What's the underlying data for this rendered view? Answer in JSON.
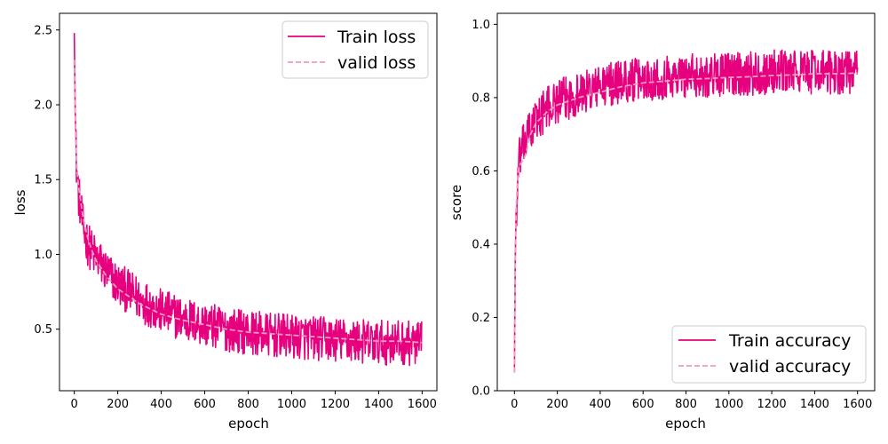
{
  "colors": {
    "train": "#e6007e",
    "valid": "#f29ac0"
  },
  "chart_data": [
    {
      "type": "line",
      "xlabel": "epoch",
      "ylabel": "loss",
      "xlim": [
        -68,
        1668
      ],
      "ylim": [
        0.0887,
        2.6113
      ],
      "xticks": [
        0,
        200,
        400,
        600,
        800,
        1000,
        1200,
        1400,
        1600
      ],
      "yticks": [
        0.5,
        1.0,
        1.5,
        2.0,
        2.5
      ],
      "ytick_labels": [
        "0.5",
        "1.0",
        "1.5",
        "2.0",
        "2.5"
      ],
      "legend_position": "top-right",
      "grid": false,
      "series": [
        {
          "name": "Train loss",
          "style": "solid",
          "x": [
            0,
            5,
            10,
            20,
            30,
            40,
            60,
            80,
            100,
            150,
            200,
            300,
            400,
            500,
            600,
            700,
            800,
            900,
            1000,
            1100,
            1200,
            1300,
            1400,
            1500,
            1600
          ],
          "y": [
            2.48,
            1.85,
            1.6,
            1.4,
            1.3,
            1.18,
            1.08,
            1.02,
            0.98,
            0.88,
            0.8,
            0.7,
            0.62,
            0.57,
            0.53,
            0.5,
            0.48,
            0.46,
            0.45,
            0.44,
            0.43,
            0.42,
            0.41,
            0.41,
            0.4
          ],
          "noise_amplitude": 0.15,
          "y_range_observed": [
            0.15,
            2.5
          ]
        },
        {
          "name": "valid loss",
          "style": "dashed",
          "x": [
            0,
            5,
            10,
            20,
            30,
            40,
            60,
            80,
            100,
            150,
            200,
            300,
            400,
            500,
            600,
            700,
            800,
            900,
            1000,
            1100,
            1200,
            1300,
            1400,
            1500,
            1600
          ],
          "y": [
            2.3,
            1.85,
            1.6,
            1.45,
            1.35,
            1.25,
            1.12,
            1.03,
            0.96,
            0.85,
            0.77,
            0.67,
            0.6,
            0.56,
            0.53,
            0.5,
            0.48,
            0.47,
            0.46,
            0.45,
            0.44,
            0.43,
            0.42,
            0.42,
            0.41
          ]
        }
      ]
    },
    {
      "type": "line",
      "xlabel": "epoch",
      "ylabel": "score",
      "xlim": [
        -80,
        1680
      ],
      "ylim": [
        0.0,
        1.03
      ],
      "xticks": [
        0,
        200,
        400,
        600,
        800,
        1000,
        1200,
        1400,
        1600
      ],
      "yticks": [
        0.0,
        0.2,
        0.4,
        0.6,
        0.8,
        1.0
      ],
      "ytick_labels": [
        "0.0",
        "0.2",
        "0.4",
        "0.6",
        "0.8",
        "1.0"
      ],
      "legend_position": "bottom-right",
      "grid": false,
      "series": [
        {
          "name": "Train accuracy",
          "style": "solid",
          "x": [
            0,
            3,
            5,
            10,
            15,
            20,
            30,
            50,
            75,
            100,
            150,
            200,
            300,
            400,
            500,
            600,
            700,
            800,
            900,
            1000,
            1100,
            1200,
            1300,
            1400,
            1500,
            1600
          ],
          "y": [
            0.05,
            0.3,
            0.42,
            0.5,
            0.55,
            0.62,
            0.65,
            0.68,
            0.71,
            0.74,
            0.77,
            0.79,
            0.81,
            0.83,
            0.845,
            0.85,
            0.855,
            0.86,
            0.86,
            0.865,
            0.865,
            0.87,
            0.87,
            0.87,
            0.87,
            0.87
          ],
          "noise_amplitude": 0.06,
          "y_range_observed": [
            0.05,
            0.98
          ]
        },
        {
          "name": "valid accuracy",
          "style": "dashed",
          "x": [
            0,
            3,
            5,
            10,
            15,
            20,
            30,
            50,
            75,
            100,
            150,
            200,
            300,
            400,
            500,
            600,
            700,
            800,
            900,
            1000,
            1100,
            1200,
            1300,
            1400,
            1500,
            1600
          ],
          "y": [
            0.05,
            0.33,
            0.44,
            0.52,
            0.58,
            0.61,
            0.62,
            0.64,
            0.7,
            0.73,
            0.76,
            0.78,
            0.8,
            0.815,
            0.83,
            0.84,
            0.845,
            0.85,
            0.852,
            0.855,
            0.857,
            0.86,
            0.862,
            0.865,
            0.865,
            0.867
          ]
        }
      ]
    }
  ]
}
